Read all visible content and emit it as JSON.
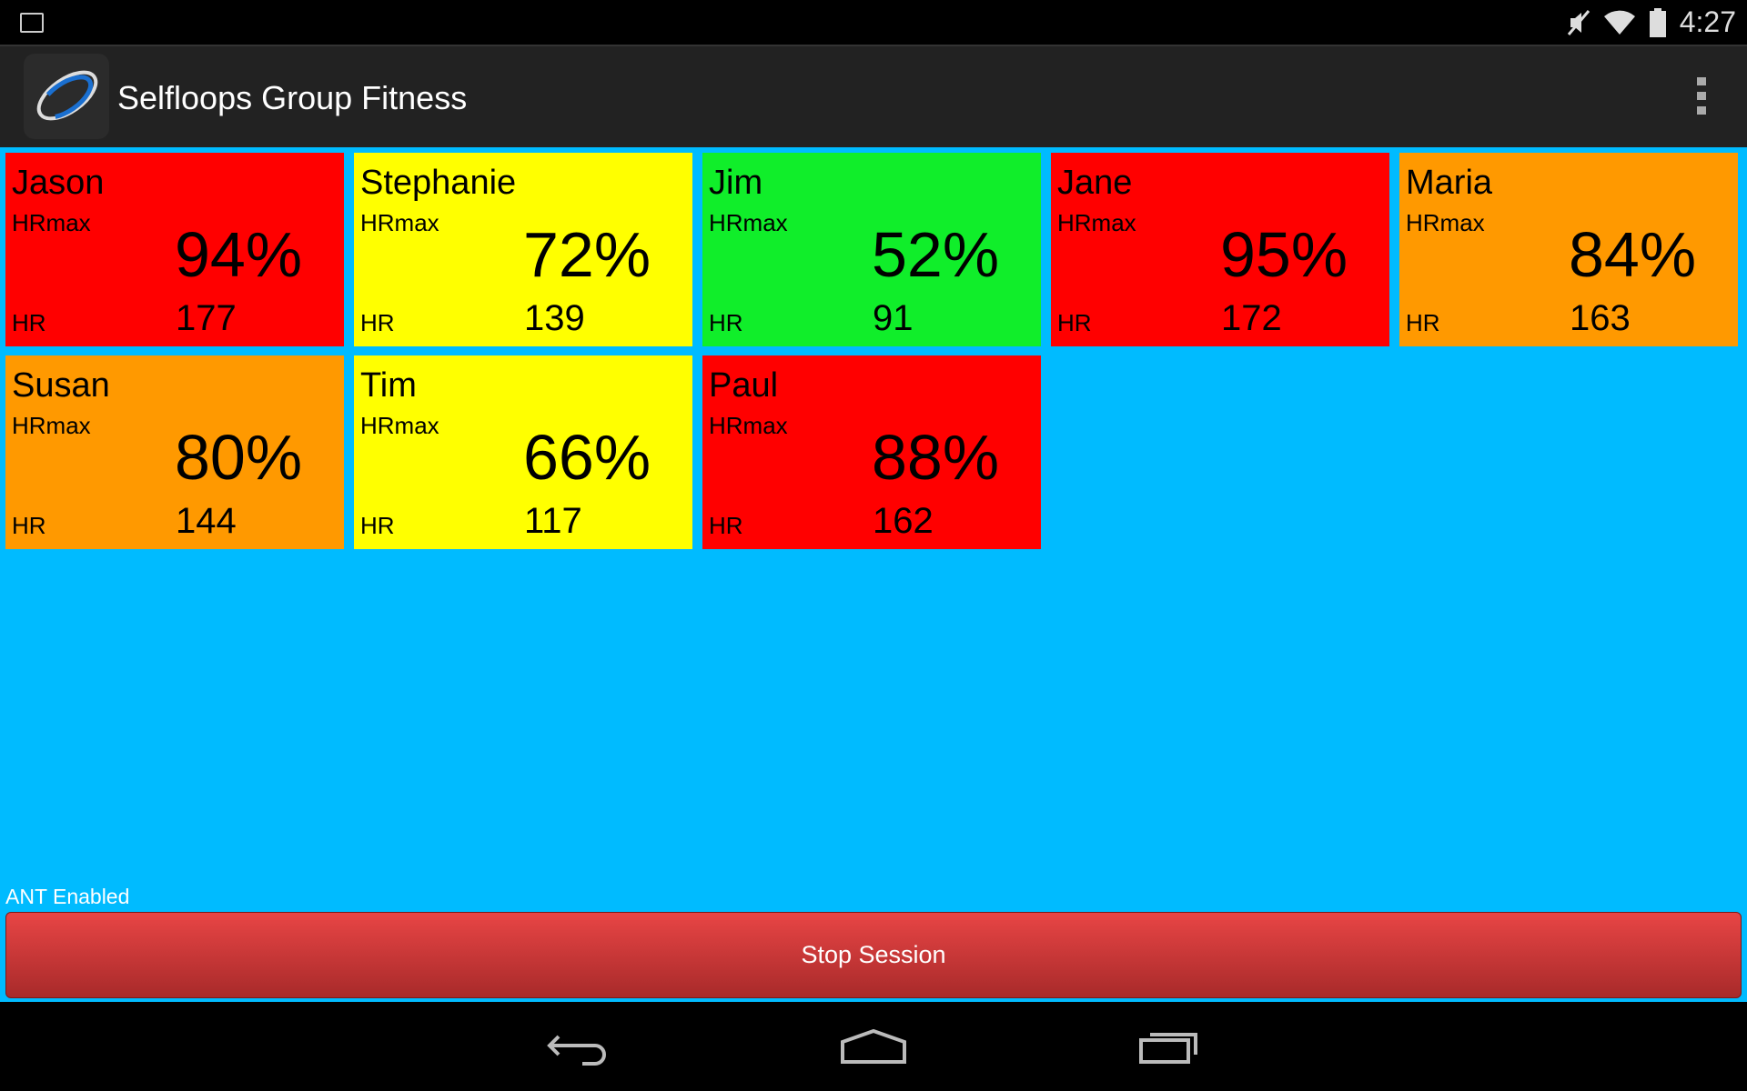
{
  "status_bar": {
    "time": "4:27",
    "icons": [
      "image-icon",
      "mute-icon",
      "wifi-icon",
      "battery-icon"
    ]
  },
  "action_bar": {
    "title": "Selfloops Group Fitness",
    "icons": [
      "app-logo",
      "overflow-menu-icon"
    ]
  },
  "labels": {
    "hrmax": "HRmax",
    "hr": "HR"
  },
  "colors": {
    "background": "#00bbff",
    "red": "#ff0000",
    "yellow": "#ffff00",
    "green": "#10ee2a",
    "orange": "#ff9900"
  },
  "athletes": [
    {
      "name": "Jason",
      "hrmax_pct": "94%",
      "hr": "177",
      "color": "#ff0000"
    },
    {
      "name": "Stephanie",
      "hrmax_pct": "72%",
      "hr": "139",
      "color": "#ffff00"
    },
    {
      "name": "Jim",
      "hrmax_pct": "52%",
      "hr": "91",
      "color": "#10ee2a"
    },
    {
      "name": "Jane",
      "hrmax_pct": "95%",
      "hr": "172",
      "color": "#ff0000"
    },
    {
      "name": "Maria",
      "hrmax_pct": "84%",
      "hr": "163",
      "color": "#ff9900"
    },
    {
      "name": "Susan",
      "hrmax_pct": "80%",
      "hr": "144",
      "color": "#ff9900"
    },
    {
      "name": "Tim",
      "hrmax_pct": "66%",
      "hr": "117",
      "color": "#ffff00"
    },
    {
      "name": "Paul",
      "hrmax_pct": "88%",
      "hr": "162",
      "color": "#ff0000"
    }
  ],
  "footer": {
    "ant_status": "ANT Enabled",
    "stop_label": "Stop Session"
  },
  "nav_bar": {
    "icons": [
      "back-icon",
      "home-icon",
      "recent-apps-icon"
    ]
  }
}
